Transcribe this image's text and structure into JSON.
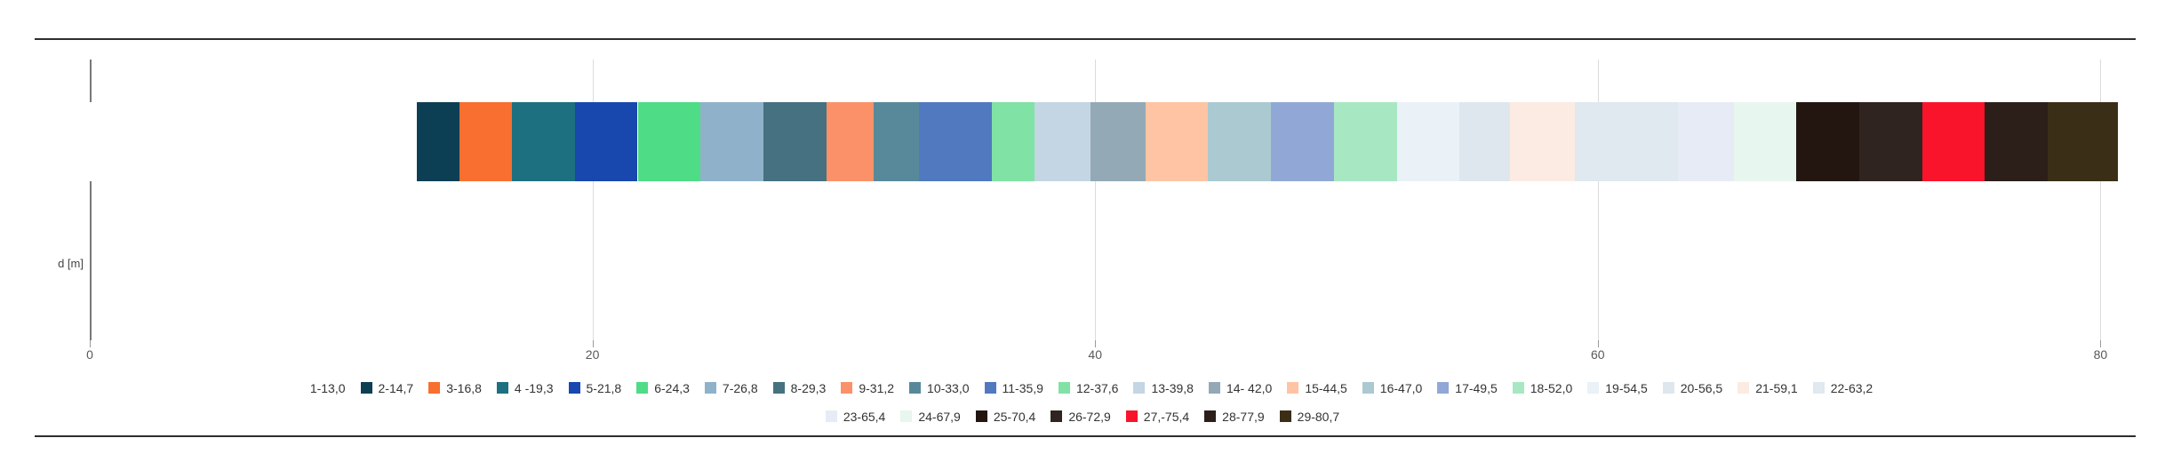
{
  "chart_data": {
    "type": "bar",
    "orientation": "horizontal-stacked",
    "title": "",
    "xlabel": "",
    "ylabel": "d [m]",
    "xlim": [
      0,
      81.4
    ],
    "x_ticks": [
      0,
      20,
      40,
      60,
      80
    ],
    "x_tick_labels": [
      "0",
      "20",
      "40",
      "60",
      "80"
    ],
    "grid": true,
    "legend_position": "bottom",
    "legend_row_split": 22,
    "series": [
      {
        "label": "1-13,0",
        "start": 0,
        "end": 13.0,
        "color": "#ffffff"
      },
      {
        "label": "2-14,7",
        "start": 13.0,
        "end": 14.7,
        "color": "#0d3f54"
      },
      {
        "label": "3-16,8",
        "start": 14.7,
        "end": 16.8,
        "color": "#f86f2f"
      },
      {
        "label": "4 -19,3",
        "start": 16.8,
        "end": 19.3,
        "color": "#1d7080"
      },
      {
        "label": "5-21,8",
        "start": 19.3,
        "end": 21.8,
        "color": "#1847ae"
      },
      {
        "label": "6-24,3",
        "start": 21.8,
        "end": 24.3,
        "color": "#4fdc86"
      },
      {
        "label": "7-26,8",
        "start": 24.3,
        "end": 26.8,
        "color": "#8fb2ca"
      },
      {
        "label": "8-29,3",
        "start": 26.8,
        "end": 29.3,
        "color": "#467180"
      },
      {
        "label": "9-31,2",
        "start": 29.3,
        "end": 31.2,
        "color": "#fb9168"
      },
      {
        "label": "10-33,0",
        "start": 31.2,
        "end": 33.0,
        "color": "#58899a"
      },
      {
        "label": "11-35,9",
        "start": 33.0,
        "end": 35.9,
        "color": "#5179bf"
      },
      {
        "label": "12-37,6",
        "start": 35.9,
        "end": 37.6,
        "color": "#80e2a5"
      },
      {
        "label": "13-39,8",
        "start": 37.6,
        "end": 39.8,
        "color": "#c4d5e3"
      },
      {
        "label": "14- 42,0",
        "start": 39.8,
        "end": 42.0,
        "color": "#93a9b6"
      },
      {
        "label": "15-44,5",
        "start": 42.0,
        "end": 44.5,
        "color": "#fec4a3"
      },
      {
        "label": "16-47,0",
        "start": 44.5,
        "end": 47.0,
        "color": "#abc9d1"
      },
      {
        "label": "17-49,5",
        "start": 47.0,
        "end": 49.5,
        "color": "#91a8d7"
      },
      {
        "label": "18-52,0",
        "start": 49.5,
        "end": 52.0,
        "color": "#a7e8c2"
      },
      {
        "label": "19-54,5",
        "start": 52.0,
        "end": 54.5,
        "color": "#eaf1f7"
      },
      {
        "label": "20-56,5",
        "start": 54.5,
        "end": 56.5,
        "color": "#dfe7ee"
      },
      {
        "label": "21-59,1",
        "start": 56.5,
        "end": 59.1,
        "color": "#fcebe2"
      },
      {
        "label": "22-63,2",
        "start": 59.1,
        "end": 63.2,
        "color": "#dfe9ef"
      },
      {
        "label": "23-65,4",
        "start": 63.2,
        "end": 65.4,
        "color": "#e7ebf5"
      },
      {
        "label": "24-67,9",
        "start": 65.4,
        "end": 67.9,
        "color": "#e7f6ee"
      },
      {
        "label": "25-70,4",
        "start": 67.9,
        "end": 70.4,
        "color": "#231611"
      },
      {
        "label": "26-72,9",
        "start": 70.4,
        "end": 72.9,
        "color": "#2f2420"
      },
      {
        "label": "27,-75,4",
        "start": 72.9,
        "end": 75.4,
        "color": "#fa142b"
      },
      {
        "label": "28-77,9",
        "start": 75.4,
        "end": 77.9,
        "color": "#2c1e19"
      },
      {
        "label": "29-80,7",
        "start": 77.9,
        "end": 80.7,
        "color": "#3a2f16"
      }
    ]
  },
  "axis": {
    "y_label": "d [m]"
  },
  "colors": {
    "rule": "#2e2e2e",
    "axis_line": "#787878",
    "gridline": "#dcdcdc",
    "tick_text": "#595959",
    "legend_text": "#333333",
    "background": "#ffffff"
  }
}
